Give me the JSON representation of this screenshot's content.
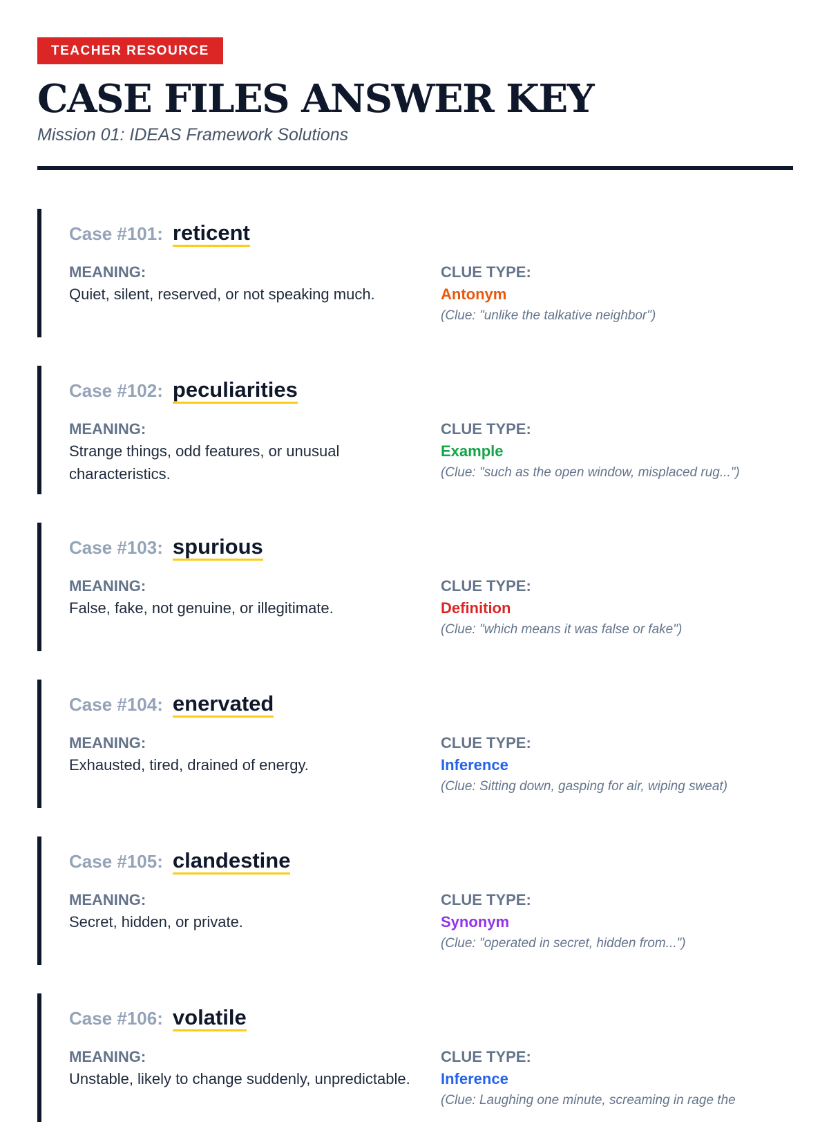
{
  "header": {
    "badge": "TEACHER RESOURCE",
    "title": "CASE FILES ANSWER KEY",
    "subtitle": "Mission 01: IDEAS Framework Solutions"
  },
  "labels": {
    "meaning": "MEANING:",
    "clue_type": "CLUE TYPE:"
  },
  "colors": {
    "Antonym": "#ea580c",
    "Example": "#16a34a",
    "Definition": "#dc2626",
    "Inference": "#2563eb",
    "Synonym": "#9333ea"
  },
  "cases": [
    {
      "number": "Case #101:",
      "word": "reticent",
      "meaning": "Quiet, silent, reserved, or not speaking much.",
      "clue_type": "Antonym",
      "clue": "(Clue: \"unlike the talkative neighbor\")"
    },
    {
      "number": "Case #102:",
      "word": "peculiarities",
      "meaning": "Strange things, odd features, or unusual characteristics.",
      "clue_type": "Example",
      "clue": "(Clue: \"such as the open window, misplaced rug...\")"
    },
    {
      "number": "Case #103:",
      "word": "spurious",
      "meaning": "False, fake, not genuine, or illegitimate.",
      "clue_type": "Definition",
      "clue": "(Clue: \"which means it was false or fake\")"
    },
    {
      "number": "Case #104:",
      "word": "enervated",
      "meaning": "Exhausted, tired, drained of energy.",
      "clue_type": "Inference",
      "clue": "(Clue: Sitting down, gasping for air, wiping sweat)"
    },
    {
      "number": "Case #105:",
      "word": "clandestine",
      "meaning": "Secret, hidden, or private.",
      "clue_type": "Synonym",
      "clue": "(Clue: \"operated in secret, hidden from...\")"
    },
    {
      "number": "Case #106:",
      "word": "volatile",
      "meaning": "Unstable, likely to change suddenly, unpredictable.",
      "clue_type": "Inference",
      "clue": "(Clue: Laughing one minute, screaming in rage the"
    }
  ]
}
